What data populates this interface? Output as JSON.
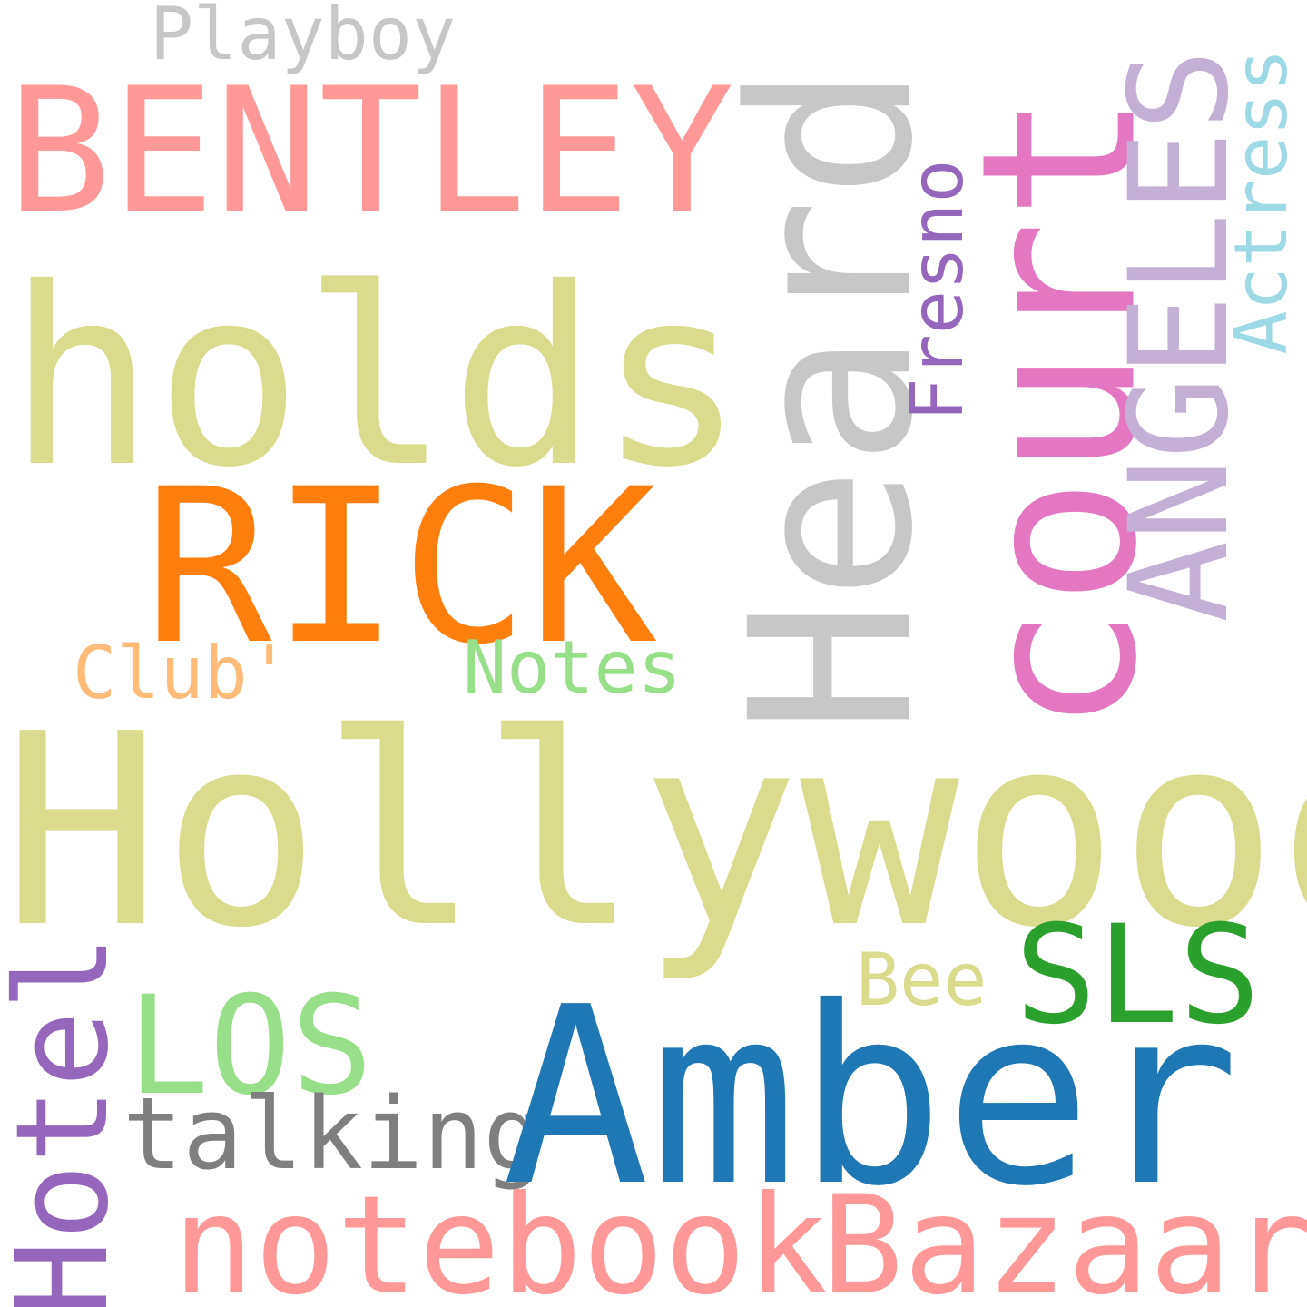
{
  "cloud": {
    "words": [
      {
        "text": "Playboy",
        "color": "#c7c7c7",
        "orientation": "horizontal"
      },
      {
        "text": "BENTLEY",
        "color": "#ff9896",
        "orientation": "horizontal"
      },
      {
        "text": "holds",
        "color": "#dbdb8d",
        "orientation": "horizontal"
      },
      {
        "text": "RICK",
        "color": "#ff7f0e",
        "orientation": "horizontal"
      },
      {
        "text": "Club'",
        "color": "#ffbb78",
        "orientation": "horizontal"
      },
      {
        "text": "Notes",
        "color": "#98df8a",
        "orientation": "horizontal"
      },
      {
        "text": "Hollywood",
        "color": "#dbdb8d",
        "orientation": "horizontal"
      },
      {
        "text": "Heard",
        "color": "#c7c7c7",
        "orientation": "vertical"
      },
      {
        "text": "court",
        "color": "#e377c2",
        "orientation": "vertical"
      },
      {
        "text": "Fresno",
        "color": "#9467bd",
        "orientation": "vertical"
      },
      {
        "text": "ANGELES",
        "color": "#c5b0d5",
        "orientation": "vertical"
      },
      {
        "text": "Actress",
        "color": "#9edae5",
        "orientation": "vertical"
      },
      {
        "text": "Bee",
        "color": "#dbdb8d",
        "orientation": "horizontal"
      },
      {
        "text": "SLS",
        "color": "#2ca02c",
        "orientation": "horizontal"
      },
      {
        "text": "LOS",
        "color": "#98df8a",
        "orientation": "horizontal"
      },
      {
        "text": "Hotel",
        "color": "#9467bd",
        "orientation": "vertical"
      },
      {
        "text": "talking",
        "color": "#7f7f7f",
        "orientation": "horizontal"
      },
      {
        "text": "Amber",
        "color": "#1f77b4",
        "orientation": "horizontal"
      },
      {
        "text": "notebook",
        "color": "#ff9896",
        "orientation": "horizontal"
      },
      {
        "text": "Bazaar",
        "color": "#ff9896",
        "orientation": "horizontal"
      }
    ]
  }
}
